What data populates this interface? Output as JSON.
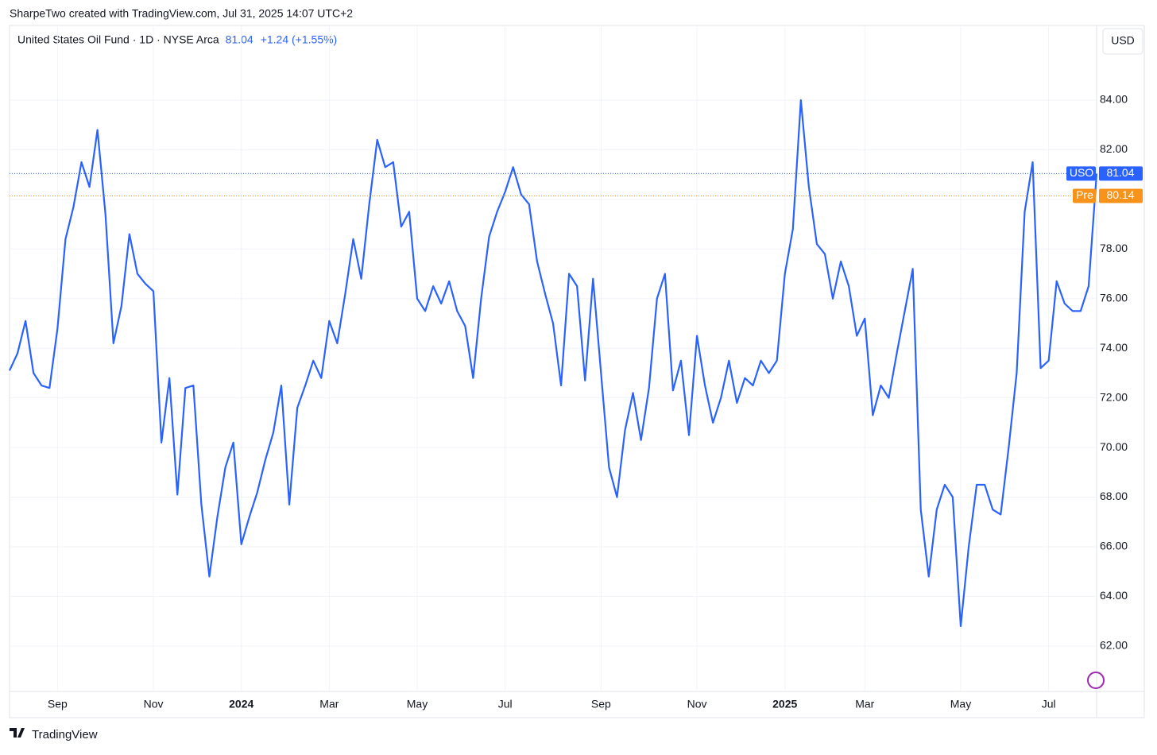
{
  "header": {
    "attribution": "SharpeTwo created with TradingView.com, Jul 31, 2025 14:07 UTC+2",
    "currency": "USD",
    "footer": "TradingView"
  },
  "chart_data": {
    "type": "line",
    "title": "United States Oil Fund · 1D · NYSE Arca",
    "change": "+1.24 (+1.55%)",
    "categories": [
      null,
      null,
      null,
      null,
      null,
      null,
      "Sep",
      null,
      null,
      null,
      null,
      null,
      null,
      null,
      null,
      null,
      null,
      null,
      "Nov",
      null,
      null,
      null,
      null,
      null,
      null,
      null,
      null,
      null,
      null,
      "2024",
      null,
      null,
      null,
      null,
      null,
      null,
      null,
      null,
      null,
      null,
      "Mar",
      null,
      null,
      null,
      null,
      null,
      null,
      null,
      null,
      null,
      null,
      "May",
      null,
      null,
      null,
      null,
      null,
      null,
      null,
      null,
      null,
      null,
      "Jul",
      null,
      null,
      null,
      null,
      null,
      null,
      null,
      null,
      null,
      null,
      null,
      "Sep",
      null,
      null,
      null,
      null,
      null,
      null,
      null,
      null,
      null,
      null,
      null,
      "Nov",
      null,
      null,
      null,
      null,
      null,
      null,
      null,
      null,
      null,
      null,
      "2025",
      null,
      null,
      null,
      null,
      null,
      null,
      null,
      null,
      null,
      "Mar",
      null,
      null,
      null,
      null,
      null,
      null,
      null,
      null,
      null,
      null,
      null,
      "May",
      null,
      null,
      null,
      null,
      null,
      null,
      null,
      null,
      null,
      null,
      "Jul",
      null,
      null,
      null,
      null,
      null,
      null
    ],
    "series": [
      {
        "name": "USO",
        "color": "#2962ff",
        "values": [
          73.1,
          73.8,
          75.1,
          73.0,
          72.5,
          72.4,
          74.8,
          78.4,
          79.7,
          81.5,
          80.5,
          82.8,
          79.4,
          74.2,
          75.7,
          78.6,
          77.0,
          76.6,
          76.3,
          70.2,
          72.8,
          68.1,
          72.4,
          72.5,
          67.7,
          64.8,
          67.2,
          69.2,
          70.2,
          66.1,
          67.2,
          68.2,
          69.5,
          70.6,
          72.5,
          67.7,
          71.6,
          72.5,
          73.5,
          72.8,
          75.1,
          74.2,
          76.2,
          78.4,
          76.8,
          79.8,
          82.4,
          81.3,
          81.5,
          78.9,
          79.5,
          76.0,
          75.5,
          76.5,
          75.8,
          76.7,
          75.5,
          74.9,
          72.8,
          76.0,
          78.5,
          79.5,
          80.3,
          81.3,
          80.2,
          79.8,
          77.5,
          76.2,
          75.0,
          72.5,
          77.0,
          76.5,
          72.7,
          76.8,
          73.0,
          69.2,
          68.0,
          70.7,
          72.2,
          70.3,
          72.4,
          76.0,
          77.0,
          72.3,
          73.5,
          70.5,
          74.5,
          72.5,
          71.0,
          72.0,
          73.5,
          71.8,
          72.8,
          72.5,
          73.5,
          73.0,
          73.5,
          77.0,
          78.8,
          84.0,
          80.5,
          78.2,
          77.8,
          76.0,
          77.5,
          76.5,
          74.5,
          75.2,
          71.3,
          72.5,
          72.0,
          73.8,
          75.5,
          77.2,
          67.5,
          64.8,
          67.5,
          68.5,
          68.0,
          62.8,
          66.0,
          68.5,
          68.5,
          67.5,
          67.3,
          70.0,
          73.0,
          79.5,
          81.5,
          73.2,
          73.5,
          76.7,
          75.8,
          75.5,
          75.5,
          76.5,
          81.04
        ]
      }
    ],
    "premarket": {
      "name": "Pre",
      "value": 80.14,
      "color": "#f7931a"
    },
    "ylim": [
      60.17,
      87.01
    ],
    "yticks": [
      {
        "value": 62,
        "label": "62.00"
      },
      {
        "value": 64,
        "label": "64.00"
      },
      {
        "value": 66,
        "label": "66.00"
      },
      {
        "value": 68,
        "label": "68.00"
      },
      {
        "value": 70,
        "label": "70.00"
      },
      {
        "value": 72,
        "label": "72.00"
      },
      {
        "value": 74,
        "label": "74.00"
      },
      {
        "value": 76,
        "label": "76.00"
      },
      {
        "value": 78,
        "label": "78.00"
      },
      {
        "value": 80,
        "label": "80.00"
      },
      {
        "value": 82,
        "label": "82.00"
      },
      {
        "value": 84,
        "label": "84.00"
      }
    ],
    "grid": true
  }
}
